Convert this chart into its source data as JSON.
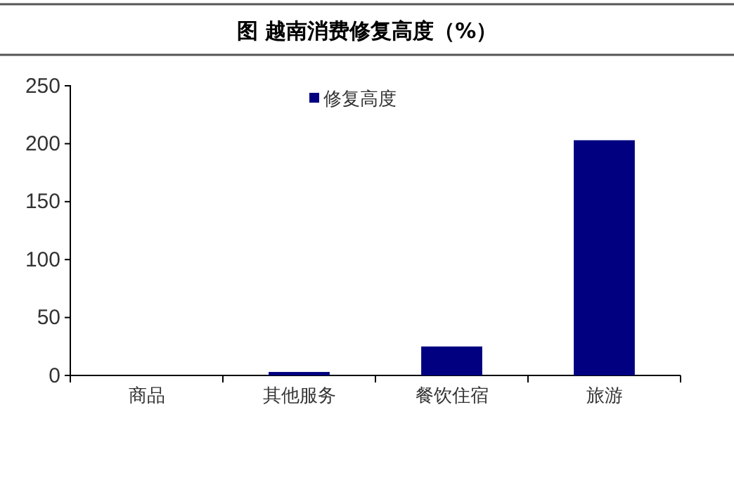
{
  "chart_data": {
    "type": "bar",
    "title": "图    越南消费修复高度（%）",
    "categories": [
      "商品",
      "其他服务",
      "餐饮住宿",
      "旅游"
    ],
    "series": [
      {
        "name": "修复高度",
        "color": "#000080",
        "values": [
          0,
          3,
          25,
          203
        ]
      }
    ],
    "ylim": [
      0,
      250
    ],
    "yticks": [
      0,
      50,
      100,
      150,
      200,
      250
    ],
    "legend": "top",
    "grid": false
  }
}
